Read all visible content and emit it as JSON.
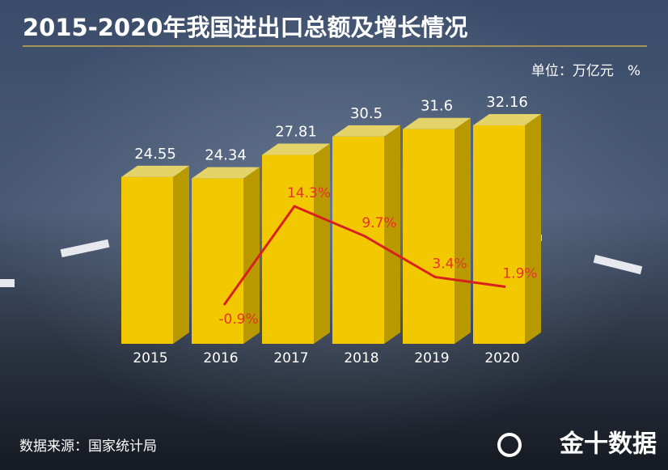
{
  "chart_data": {
    "type": "bar",
    "title": "2015-2020年我国进出口总额及增长情况",
    "unit": "单位：万亿元　%",
    "source": "数据来源：国家统计局",
    "watermark": "金十数据",
    "categories": [
      "2015",
      "2016",
      "2017",
      "2018",
      "2019",
      "2020"
    ],
    "series": [
      {
        "type": "bar",
        "color": "#f2c900",
        "values": [
          24.55,
          24.34,
          27.81,
          30.5,
          31.6,
          32.16
        ]
      },
      {
        "type": "line",
        "color": "#d8201e",
        "values": [
          null,
          -0.9,
          14.3,
          9.7,
          3.4,
          1.9
        ],
        "value_labels": [
          null,
          "-0.9%",
          "14.3%",
          "9.7%",
          "3.4%",
          "1.9%"
        ]
      }
    ]
  }
}
